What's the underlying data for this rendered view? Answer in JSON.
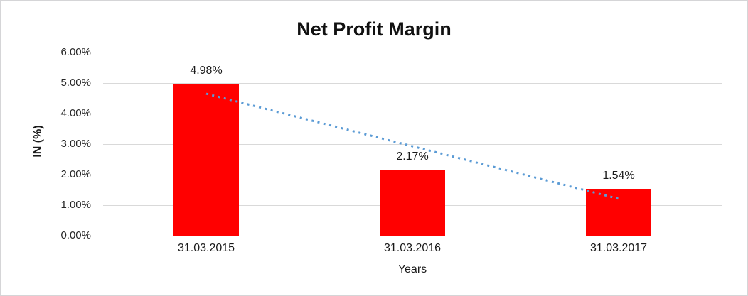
{
  "chart_data": {
    "type": "bar",
    "title": "Net Profit Margin",
    "categories": [
      "31.03.2015",
      "31.03.2016",
      "31.03.2017"
    ],
    "values": [
      4.98,
      2.17,
      1.54
    ],
    "value_labels": [
      "4.98%",
      "2.17%",
      "1.54%"
    ],
    "xlabel": "Years",
    "ylabel": "IN (%)",
    "ylim": [
      0,
      6
    ],
    "ytick_step": 1,
    "ytick_labels": [
      "0.00%",
      "1.00%",
      "2.00%",
      "3.00%",
      "4.00%",
      "5.00%",
      "6.00%"
    ],
    "grid": true,
    "legend": false,
    "bar_color": "#FF0000",
    "gridline_color": "#D9D9D9",
    "axis_line_color": "#BFBFBF",
    "text_color": "#1A1A1A",
    "trendline": {
      "type": "linear",
      "style": "dotted",
      "color": "#5B9BD5",
      "start_value": 4.65,
      "end_value": 1.21
    }
  }
}
